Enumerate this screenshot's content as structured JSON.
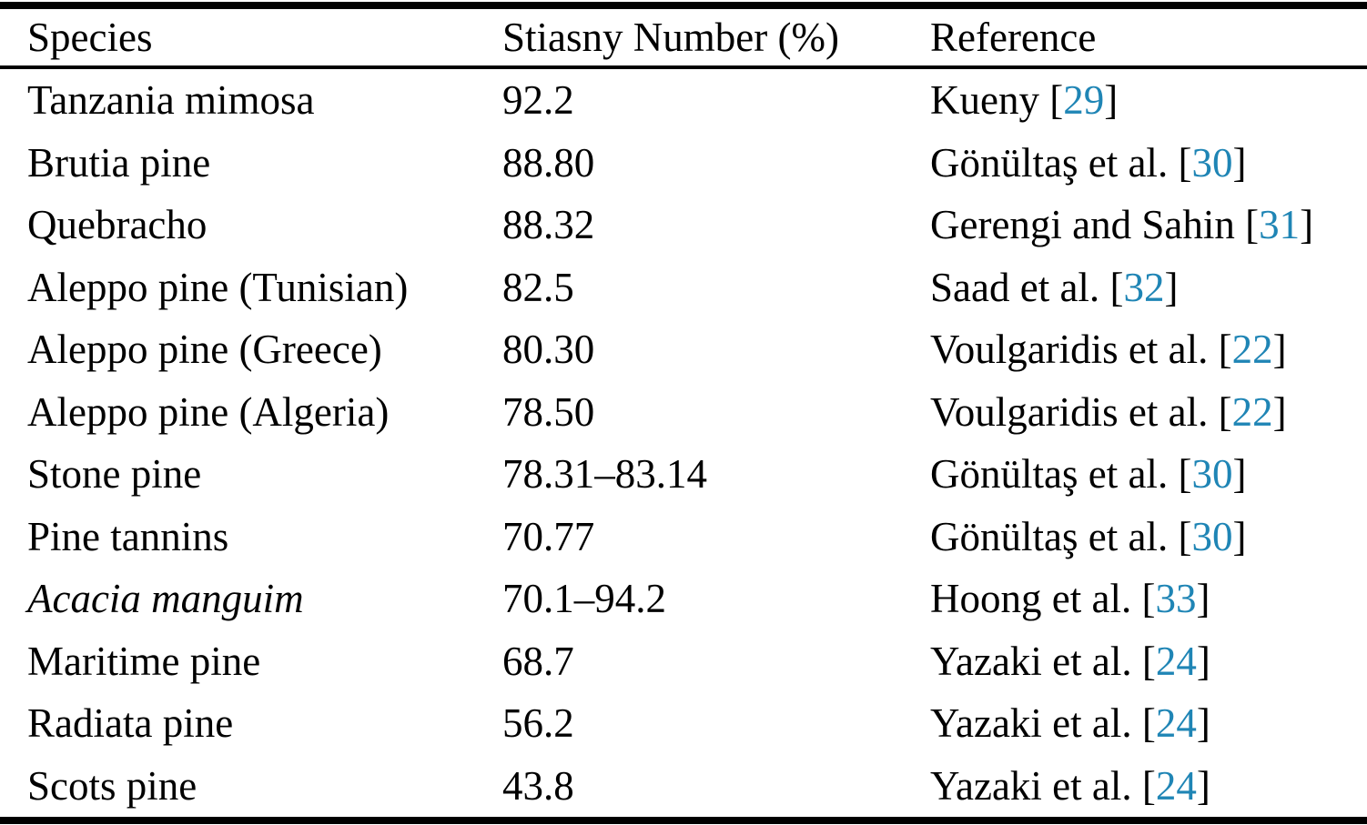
{
  "accent_color": "#1f85b5",
  "table": {
    "columns": {
      "species": "Species",
      "stiasny": "Stiasny Number (%)",
      "reference": "Reference"
    },
    "bracket_open": "[",
    "bracket_close": "]",
    "rows": [
      {
        "species": "Tanzania mimosa",
        "species_italic": false,
        "stiasny": "92.2",
        "ref_authors": "Kueny",
        "citation": "29"
      },
      {
        "species": "Brutia pine",
        "species_italic": false,
        "stiasny": "88.80",
        "ref_authors": "Gönültaş et al.",
        "citation": "30"
      },
      {
        "species": "Quebracho",
        "species_italic": false,
        "stiasny": "88.32",
        "ref_authors": "Gerengi and Sahin",
        "citation": "31"
      },
      {
        "species": "Aleppo pine (Tunisian)",
        "species_italic": false,
        "stiasny": "82.5",
        "ref_authors": "Saad et al.",
        "citation": "32"
      },
      {
        "species": "Aleppo pine (Greece)",
        "species_italic": false,
        "stiasny": "80.30",
        "ref_authors": "Voulgaridis et al.",
        "citation": "22"
      },
      {
        "species": "Aleppo pine (Algeria)",
        "species_italic": false,
        "stiasny": "78.50",
        "ref_authors": "Voulgaridis et al.",
        "citation": "22"
      },
      {
        "species": "Stone pine",
        "species_italic": false,
        "stiasny": "78.31–83.14",
        "ref_authors": "Gönültaş et al.",
        "citation": "30"
      },
      {
        "species": "Pine tannins",
        "species_italic": false,
        "stiasny": "70.77",
        "ref_authors": "Gönültaş et al.",
        "citation": "30"
      },
      {
        "species": "Acacia manguim",
        "species_italic": true,
        "stiasny": "70.1–94.2",
        "ref_authors": "Hoong et al.",
        "citation": "33"
      },
      {
        "species": "Maritime pine",
        "species_italic": false,
        "stiasny": "68.7",
        "ref_authors": "Yazaki et al.",
        "citation": "24"
      },
      {
        "species": "Radiata pine",
        "species_italic": false,
        "stiasny": "56.2",
        "ref_authors": "Yazaki et al.",
        "citation": "24"
      },
      {
        "species": "Scots pine",
        "species_italic": false,
        "stiasny": "43.8",
        "ref_authors": "Yazaki et al.",
        "citation": "24"
      }
    ]
  }
}
